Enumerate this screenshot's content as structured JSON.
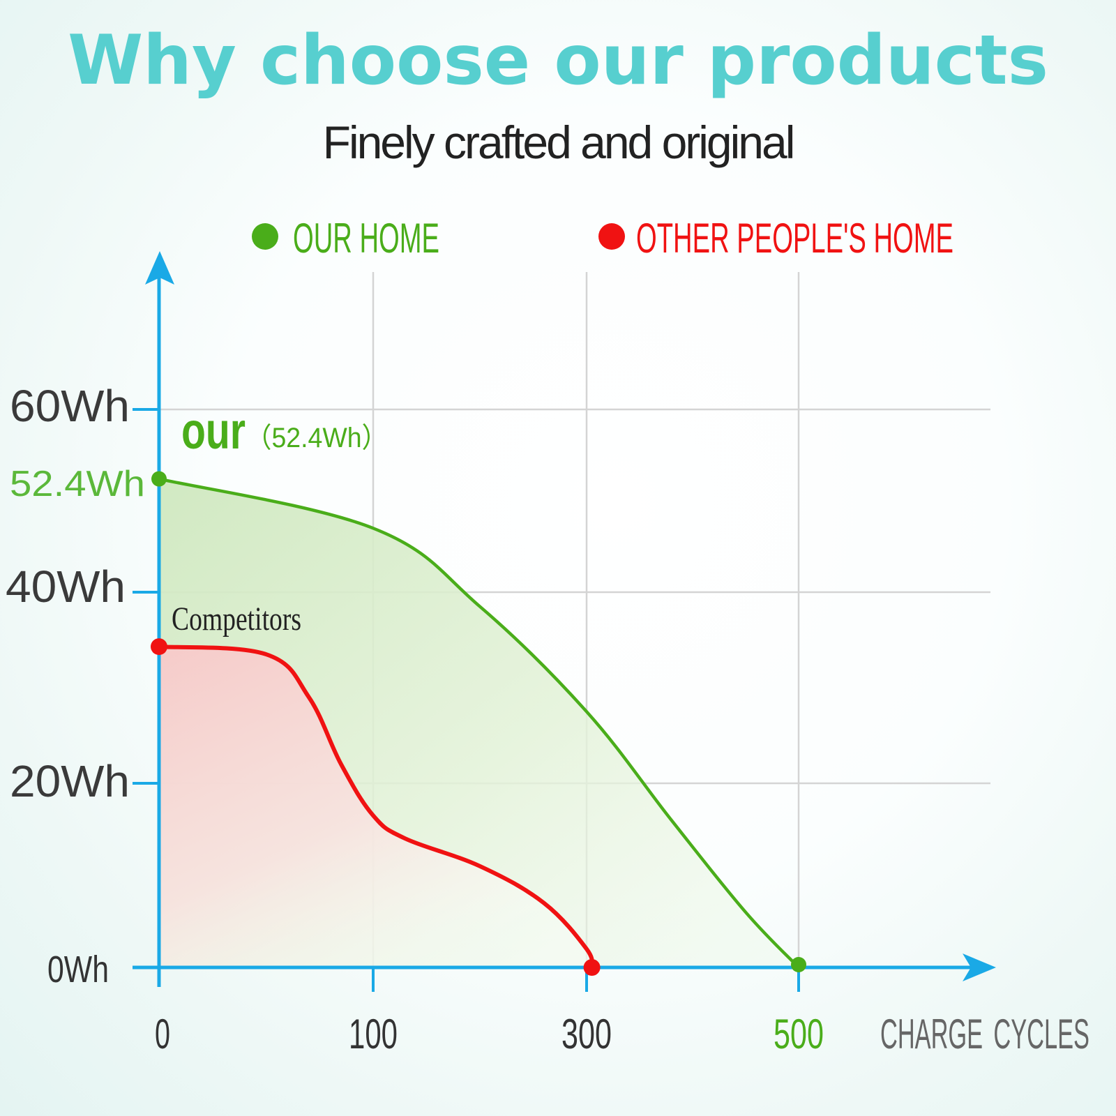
{
  "header": {
    "title": "Why choose our products",
    "subtitle": "Finely crafted and original"
  },
  "colors": {
    "title": "#57cfcf",
    "axis": "#1aa9e6",
    "ours": "#4aad1a",
    "competitor": "#f01212",
    "grid": "#d4d4d4",
    "tick_text": "#333333",
    "axis_label": "#666666"
  },
  "chart_data": {
    "type": "area",
    "x": [
      0,
      100,
      300,
      500
    ],
    "xticks": [
      "0",
      "100",
      "300",
      "500"
    ],
    "yticks": [
      "0Wh",
      "20Wh",
      "40Wh",
      "60Wh"
    ],
    "ytick_values": [
      0,
      20,
      40,
      60
    ],
    "xlabel": "CHARGE CYCLES",
    "ylabel": "",
    "grid": true,
    "legend_placement": "top",
    "series": [
      {
        "name": "OUR HOME",
        "color": "#4aad1a",
        "points": [
          [
            0,
            52.4
          ],
          [
            100,
            47
          ],
          [
            200,
            38.5
          ],
          [
            300,
            27.5
          ],
          [
            380,
            16
          ],
          [
            450,
            6
          ],
          [
            500,
            0
          ]
        ]
      },
      {
        "name": "OTHER PEOPLE'S HOME",
        "color": "#f01212",
        "points": [
          [
            0,
            34.3
          ],
          [
            50,
            33.5
          ],
          [
            70,
            29
          ],
          [
            85,
            22
          ],
          [
            100,
            16.5
          ],
          [
            130,
            14
          ],
          [
            200,
            11
          ],
          [
            260,
            7
          ],
          [
            300,
            2
          ],
          [
            305,
            0
          ]
        ]
      }
    ],
    "annotations": {
      "ours_label": "our",
      "ours_value": "（52.4Wh）",
      "ours_start": "52.4Wh",
      "competitors": "Competitors",
      "highlight_x_tick": "500"
    }
  }
}
